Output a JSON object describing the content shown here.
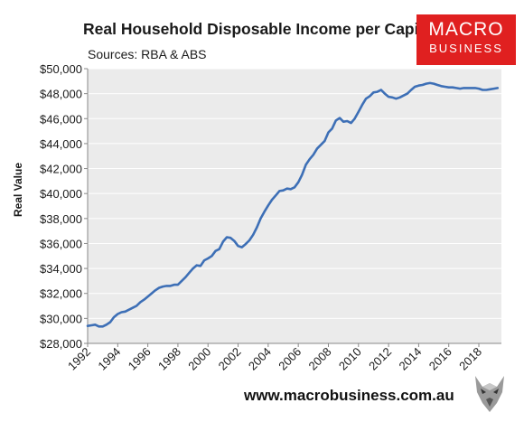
{
  "header": {
    "title": "Real Household Disposable Income per Capita",
    "subtitle": "Sources: RBA & ABS"
  },
  "logo": {
    "line1": "MACRO",
    "line2": "BUSINESS",
    "color": "#e02020"
  },
  "footer": {
    "url": "www.macrobusiness.com.au"
  },
  "chart_data": {
    "type": "line",
    "title": "Real Household Disposable Income per Capita",
    "subtitle": "Sources: RBA & ABS",
    "xlabel": "",
    "ylabel": "Real Value",
    "xlim": [
      1992.0,
      2019.5
    ],
    "ylim": [
      28000,
      50000
    ],
    "x_ticks": [
      1992,
      1994,
      1996,
      1998,
      2000,
      2002,
      2004,
      2006,
      2008,
      2010,
      2012,
      2014,
      2016,
      2018
    ],
    "x_tick_labels": [
      "1992",
      "1994",
      "1996",
      "1998",
      "2000",
      "2002",
      "2004",
      "2006",
      "2008",
      "2010",
      "2012",
      "2014",
      "2016",
      "2018"
    ],
    "y_ticks": [
      28000,
      30000,
      32000,
      34000,
      36000,
      38000,
      40000,
      42000,
      44000,
      46000,
      48000,
      50000
    ],
    "y_tick_labels": [
      "$28,000",
      "$30,000",
      "$32,000",
      "$34,000",
      "$36,000",
      "$38,000",
      "$40,000",
      "$42,000",
      "$44,000",
      "$46,000",
      "$48,000",
      "$50,000"
    ],
    "grid": true,
    "plot_background": "#ebebeb",
    "line_color": "#3d6fb6",
    "series": [
      {
        "x": [
          1992.0,
          1992.25,
          1992.5,
          1992.75,
          1993.0,
          1993.25,
          1993.5,
          1993.75,
          1994.0,
          1994.25,
          1994.5,
          1994.75,
          1995.0,
          1995.25,
          1995.5,
          1995.75,
          1996.0,
          1996.25,
          1996.5,
          1996.75,
          1997.0,
          1997.25,
          1997.5,
          1997.75,
          1998.0,
          1998.25,
          1998.5,
          1998.75,
          1999.0,
          1999.25,
          1999.5,
          1999.75,
          2000.0,
          2000.25,
          2000.5,
          2000.75,
          2001.0,
          2001.25,
          2001.5,
          2001.75,
          2002.0,
          2002.25,
          2002.5,
          2002.75,
          2003.0,
          2003.25,
          2003.5,
          2003.75,
          2004.0,
          2004.25,
          2004.5,
          2004.75,
          2005.0,
          2005.25,
          2005.5,
          2005.75,
          2006.0,
          2006.25,
          2006.5,
          2006.75,
          2007.0,
          2007.25,
          2007.5,
          2007.75,
          2008.0,
          2008.25,
          2008.5,
          2008.75,
          2009.0,
          2009.25,
          2009.5,
          2009.75,
          2010.0,
          2010.25,
          2010.5,
          2010.75,
          2011.0,
          2011.25,
          2011.5,
          2011.75,
          2012.0,
          2012.25,
          2012.5,
          2012.75,
          2013.0,
          2013.25,
          2013.5,
          2013.75,
          2014.0,
          2014.25,
          2014.5,
          2014.75,
          2015.0,
          2015.25,
          2015.5,
          2015.75,
          2016.0,
          2016.25,
          2016.5,
          2016.75,
          2017.0,
          2017.25,
          2017.5,
          2017.75,
          2018.0,
          2018.25,
          2018.5,
          2018.75,
          2019.0,
          2019.25
        ],
        "values": [
          29400,
          29450,
          29500,
          29350,
          29350,
          29500,
          29700,
          30100,
          30350,
          30500,
          30550,
          30700,
          30850,
          31000,
          31300,
          31500,
          31750,
          32000,
          32250,
          32450,
          32550,
          32600,
          32600,
          32700,
          32700,
          33000,
          33300,
          33650,
          34000,
          34250,
          34200,
          34650,
          34800,
          35000,
          35400,
          35550,
          36150,
          36500,
          36450,
          36200,
          35800,
          35700,
          35950,
          36250,
          36700,
          37300,
          38000,
          38550,
          39050,
          39500,
          39850,
          40200,
          40250,
          40400,
          40350,
          40500,
          40900,
          41500,
          42300,
          42750,
          43100,
          43600,
          43900,
          44200,
          44900,
          45200,
          45850,
          46050,
          45750,
          45800,
          45650,
          46000,
          46550,
          47100,
          47600,
          47800,
          48100,
          48150,
          48300,
          48000,
          47750,
          47700,
          47600,
          47700,
          47850,
          48000,
          48300,
          48550,
          48650,
          48700,
          48800,
          48850,
          48800,
          48700,
          48600,
          48550,
          48500,
          48500,
          48450,
          48400,
          48450,
          48450,
          48450,
          48450,
          48400,
          48300,
          48300,
          48350,
          48400,
          48450
        ]
      }
    ]
  }
}
